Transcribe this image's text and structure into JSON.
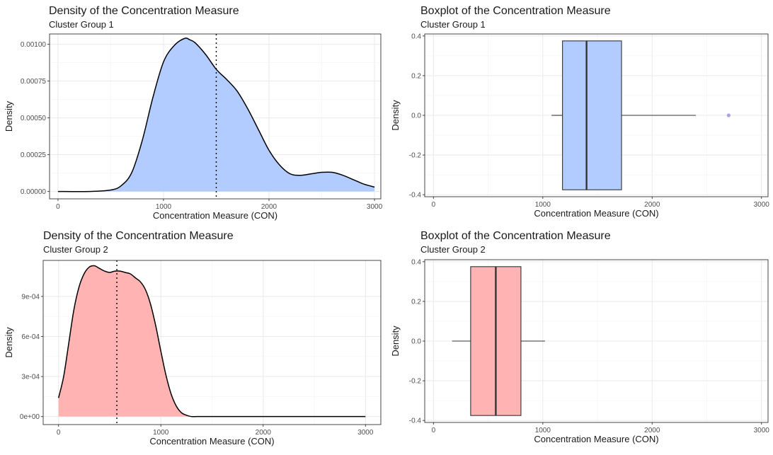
{
  "chart_data": [
    {
      "type": "area",
      "title": "Density of the Concentration Measure",
      "subtitle": "Cluster Group 1",
      "xlabel": "Concentration Measure (CON)",
      "ylabel": "Density",
      "xlim": [
        -80,
        3060
      ],
      "ylim": [
        -5e-05,
        0.00107
      ],
      "x_ticks": [
        0,
        1000,
        2000,
        3000
      ],
      "y_ticks": [
        0.0,
        0.00025,
        0.0005,
        0.00075,
        0.001
      ],
      "y_tick_labels": [
        "0.00000",
        "0.00025",
        "0.00050",
        "0.00075",
        "0.00100"
      ],
      "x_tick_labels": [
        "0",
        "1000",
        "2000",
        "3000"
      ],
      "fill": "#b3ccff",
      "grid": true,
      "reference_line_x": 1500,
      "x": [
        0,
        300,
        500,
        600,
        700,
        800,
        900,
        1000,
        1100,
        1200,
        1250,
        1300,
        1400,
        1500,
        1600,
        1700,
        1800,
        1900,
        2000,
        2100,
        2200,
        2300,
        2400,
        2500,
        2600,
        2700,
        2800,
        2900,
        3000
      ],
      "values": [
        0.0,
        0.0,
        1e-05,
        4e-05,
        0.00013,
        0.00035,
        0.00064,
        0.00088,
        0.00099,
        0.00104,
        0.00103,
        0.00101,
        0.00093,
        0.00083,
        0.00076,
        0.00068,
        0.00056,
        0.00042,
        0.00028,
        0.00018,
        0.00012,
        0.00011,
        0.00012,
        0.00013,
        0.00013,
        0.00011,
        8e-05,
        5e-05,
        3e-05
      ]
    },
    {
      "type": "boxplot",
      "title": "Boxplot of the Concentration Measure",
      "subtitle": "Cluster Group 1",
      "xlabel": "Concentration Measure (CON)",
      "ylabel": "Density",
      "xlim": [
        -80,
        3060
      ],
      "ylim": [
        -0.41,
        0.41
      ],
      "x_ticks": [
        0,
        1000,
        2000,
        3000
      ],
      "y_ticks": [
        -0.4,
        -0.2,
        0.0,
        0.2,
        0.4
      ],
      "y_tick_labels": [
        "-0.4",
        "-0.2",
        "0.0",
        "0.2",
        "0.4"
      ],
      "x_tick_labels": [
        "0",
        "1000",
        "2000",
        "3000"
      ],
      "fill": "#b3ccff",
      "grid": true,
      "box": {
        "whisker_low": 1080,
        "q1": 1180,
        "median": 1400,
        "q3": 1720,
        "whisker_high": 2400,
        "box_y": [
          -0.375,
          0.375
        ]
      },
      "outliers": [
        2700
      ],
      "outlier_color": "#a4a4f0"
    },
    {
      "type": "area",
      "title": "Density of the Concentration Measure",
      "subtitle": "Cluster Group 2",
      "xlabel": "Concentration Measure (CON)",
      "ylabel": "Density",
      "xlim": [
        -150,
        3150
      ],
      "ylim": [
        -6e-05,
        0.00117
      ],
      "x_ticks": [
        0,
        1000,
        2000,
        3000
      ],
      "y_ticks": [
        0.0,
        0.0003,
        0.0006,
        0.0009
      ],
      "y_tick_labels": [
        "0e+00",
        "3e-04",
        "6e-04",
        "9e-04"
      ],
      "x_tick_labels": [
        "0",
        "1000",
        "2000",
        "3000"
      ],
      "fill": "#ffb3b3",
      "grid": true,
      "reference_line_x": 570,
      "x": [
        0,
        50,
        100,
        150,
        200,
        250,
        300,
        350,
        400,
        450,
        500,
        550,
        600,
        650,
        700,
        750,
        800,
        850,
        900,
        950,
        1000,
        1050,
        1100,
        1150,
        1200,
        1250,
        1300,
        1350,
        1400,
        1500,
        2000,
        3000
      ],
      "values": [
        0.00014,
        0.0003,
        0.00055,
        0.0008,
        0.00097,
        0.00107,
        0.00112,
        0.00113,
        0.00111,
        0.00109,
        0.00108,
        0.00109,
        0.00109,
        0.00108,
        0.00107,
        0.00104,
        0.00101,
        0.00095,
        0.00084,
        0.00068,
        0.00049,
        0.00031,
        0.00017,
        8e-05,
        3e-05,
        1e-05,
        0.0,
        0.0,
        0.0,
        0.0,
        0.0,
        0.0
      ]
    },
    {
      "type": "boxplot",
      "title": "Boxplot of the Concentration Measure",
      "subtitle": "Cluster Group 2",
      "xlabel": "Concentration Measure (CON)",
      "ylabel": "Density",
      "xlim": [
        -80,
        3060
      ],
      "ylim": [
        -0.41,
        0.41
      ],
      "x_ticks": [
        0,
        1000,
        2000,
        3000
      ],
      "y_ticks": [
        -0.4,
        -0.2,
        0.0,
        0.2,
        0.4
      ],
      "y_tick_labels": [
        "-0.4",
        "-0.2",
        "0.0",
        "0.2",
        "0.4"
      ],
      "x_tick_labels": [
        "0",
        "1000",
        "2000",
        "3000"
      ],
      "fill": "#ffb3b3",
      "grid": true,
      "box": {
        "whisker_low": 170,
        "q1": 340,
        "median": 570,
        "q3": 800,
        "whisker_high": 1020,
        "box_y": [
          -0.375,
          0.375
        ]
      },
      "outliers": [],
      "outlier_color": "#ff8080"
    }
  ]
}
